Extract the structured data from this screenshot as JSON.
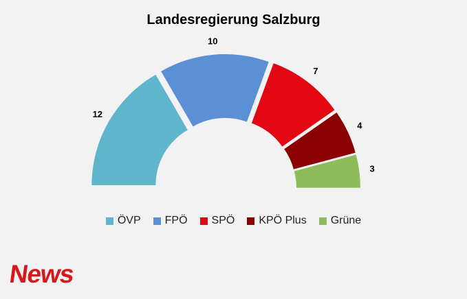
{
  "chart_data": {
    "type": "pie",
    "subtype": "semicircle-donut",
    "title": "Landesregierung Salzburg",
    "categories": [
      "ÖVP",
      "FPÖ",
      "SPÖ",
      "KPÖ Plus",
      "Grüne"
    ],
    "values": [
      12,
      10,
      7,
      4,
      3
    ],
    "colors": [
      "#5fb5cc",
      "#5b8fd6",
      "#e30613",
      "#8b0000",
      "#8fbc5a"
    ],
    "legend_position": "bottom"
  },
  "logo": {
    "text": "News",
    "color": "#d7191c"
  }
}
